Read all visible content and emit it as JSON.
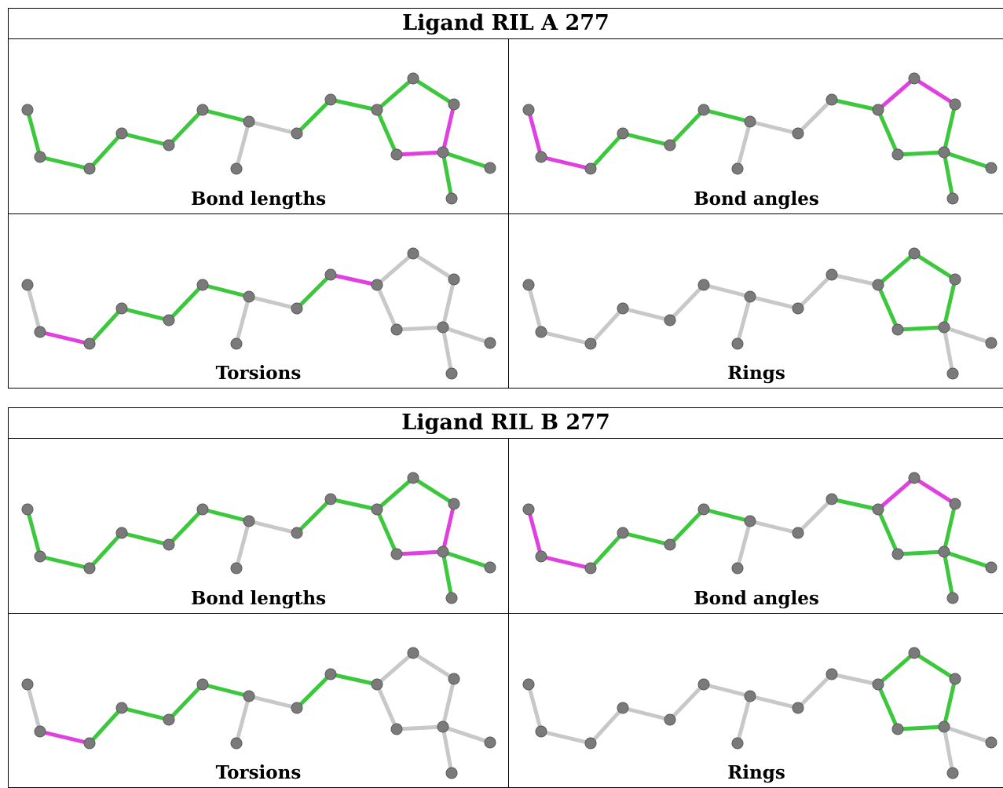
{
  "colors": {
    "flagged": "#e040e0",
    "ok": "#3cc83c",
    "neutral": "#c8c8c8",
    "atom": "#7a7a7a"
  },
  "tables": [
    {
      "title": "Ligand RIL A 277",
      "panels": [
        {
          "label": "Bond lengths",
          "bonds": [
            "g",
            "g",
            "g",
            "g",
            "g",
            "g",
            "n",
            "n",
            "g",
            "g",
            "g",
            "g",
            "m",
            "m",
            "g",
            "g",
            "g"
          ]
        },
        {
          "label": "Bond angles",
          "bonds": [
            "m",
            "m",
            "g",
            "g",
            "g",
            "g",
            "n",
            "n",
            "n",
            "g",
            "m",
            "m",
            "g",
            "g",
            "g",
            "g",
            "g"
          ]
        },
        {
          "label": "Torsions",
          "bonds": [
            "n",
            "m",
            "g",
            "g",
            "g",
            "g",
            "n",
            "n",
            "g",
            "m",
            "n",
            "n",
            "n",
            "n",
            "n",
            "n",
            "n"
          ]
        },
        {
          "label": "Rings",
          "bonds": [
            "n",
            "n",
            "n",
            "n",
            "n",
            "n",
            "n",
            "n",
            "n",
            "n",
            "g",
            "g",
            "g",
            "g",
            "g",
            "n",
            "n"
          ]
        }
      ]
    },
    {
      "title": "Ligand RIL B 277",
      "panels": [
        {
          "label": "Bond lengths",
          "bonds": [
            "g",
            "g",
            "g",
            "g",
            "g",
            "g",
            "n",
            "n",
            "g",
            "g",
            "g",
            "g",
            "m",
            "m",
            "g",
            "g",
            "g"
          ]
        },
        {
          "label": "Bond angles",
          "bonds": [
            "m",
            "m",
            "g",
            "g",
            "g",
            "g",
            "n",
            "n",
            "n",
            "g",
            "m",
            "m",
            "g",
            "g",
            "g",
            "g",
            "g"
          ]
        },
        {
          "label": "Torsions",
          "bonds": [
            "n",
            "m",
            "g",
            "g",
            "g",
            "g",
            "n",
            "n",
            "g",
            "g",
            "n",
            "n",
            "n",
            "n",
            "n",
            "n",
            "n"
          ]
        },
        {
          "label": "Rings",
          "bonds": [
            "n",
            "n",
            "n",
            "n",
            "n",
            "n",
            "n",
            "n",
            "n",
            "n",
            "g",
            "g",
            "g",
            "g",
            "g",
            "n",
            "n"
          ]
        }
      ]
    }
  ]
}
